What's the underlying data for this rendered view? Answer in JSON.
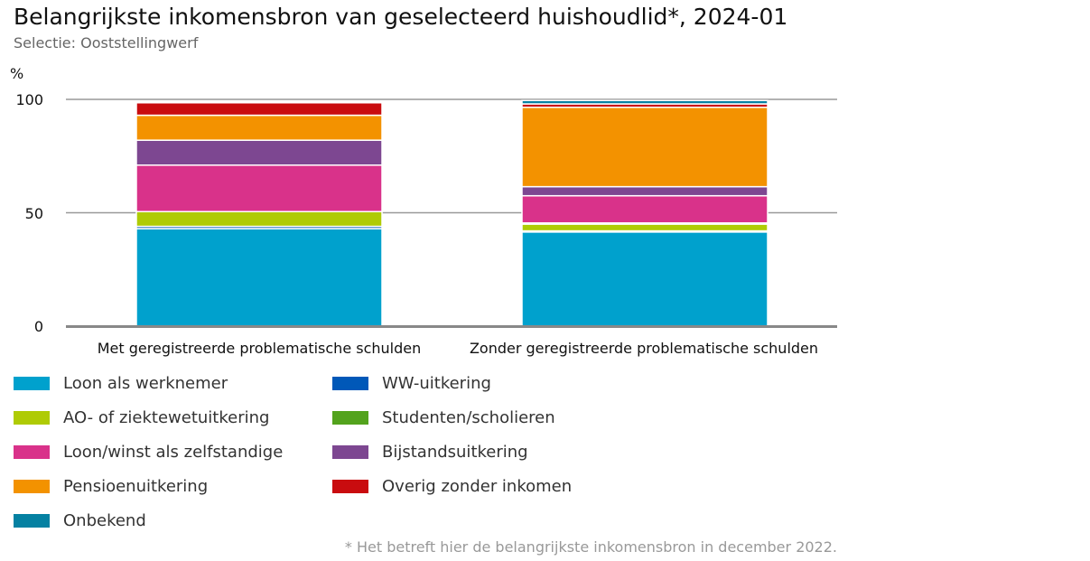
{
  "chart_data": {
    "type": "bar",
    "stacked": true,
    "title": "Belangrijkste inkomensbron van geselecteerd huishoudlid*, 2024-01",
    "subtitle": "Selectie: Ooststellingwerf",
    "ylabel": "%",
    "ylim": [
      0,
      100
    ],
    "yticks": [
      "0",
      "50",
      "100"
    ],
    "grid": true,
    "legend_position": "bottom",
    "categories": [
      "Met geregistreerde problematische schulden",
      "Zonder geregistreerde problematische schulden"
    ],
    "series": [
      {
        "name": "Loon als werknemer",
        "color": "#00a1cd",
        "values": [
          43,
          41.5
        ]
      },
      {
        "name": "WW-uitkering",
        "color": "#0058b8",
        "values": [
          1,
          0.5
        ]
      },
      {
        "name": "AO- of ziektewetuitkering",
        "color": "#afcb05",
        "values": [
          6.5,
          3
        ]
      },
      {
        "name": "Studenten/scholieren",
        "color": "#53a31d",
        "values": [
          0,
          0.5
        ]
      },
      {
        "name": "Loon/winst als zelfstandige",
        "color": "#d9328a",
        "values": [
          20.5,
          12
        ]
      },
      {
        "name": "Bijstandsuitkering",
        "color": "#7d4791",
        "values": [
          11,
          4
        ]
      },
      {
        "name": "Pensioenuitkering",
        "color": "#f39200",
        "values": [
          11,
          35
        ]
      },
      {
        "name": "Overig zonder inkomen",
        "color": "#c90c0f",
        "values": [
          5.5,
          1.5
        ]
      },
      {
        "name": "Onbekend",
        "color": "#0581a2",
        "values": [
          0,
          1.5
        ]
      }
    ],
    "footnote": "* Het betreft hier de belangrijkste inkomensbron in december 2022."
  }
}
